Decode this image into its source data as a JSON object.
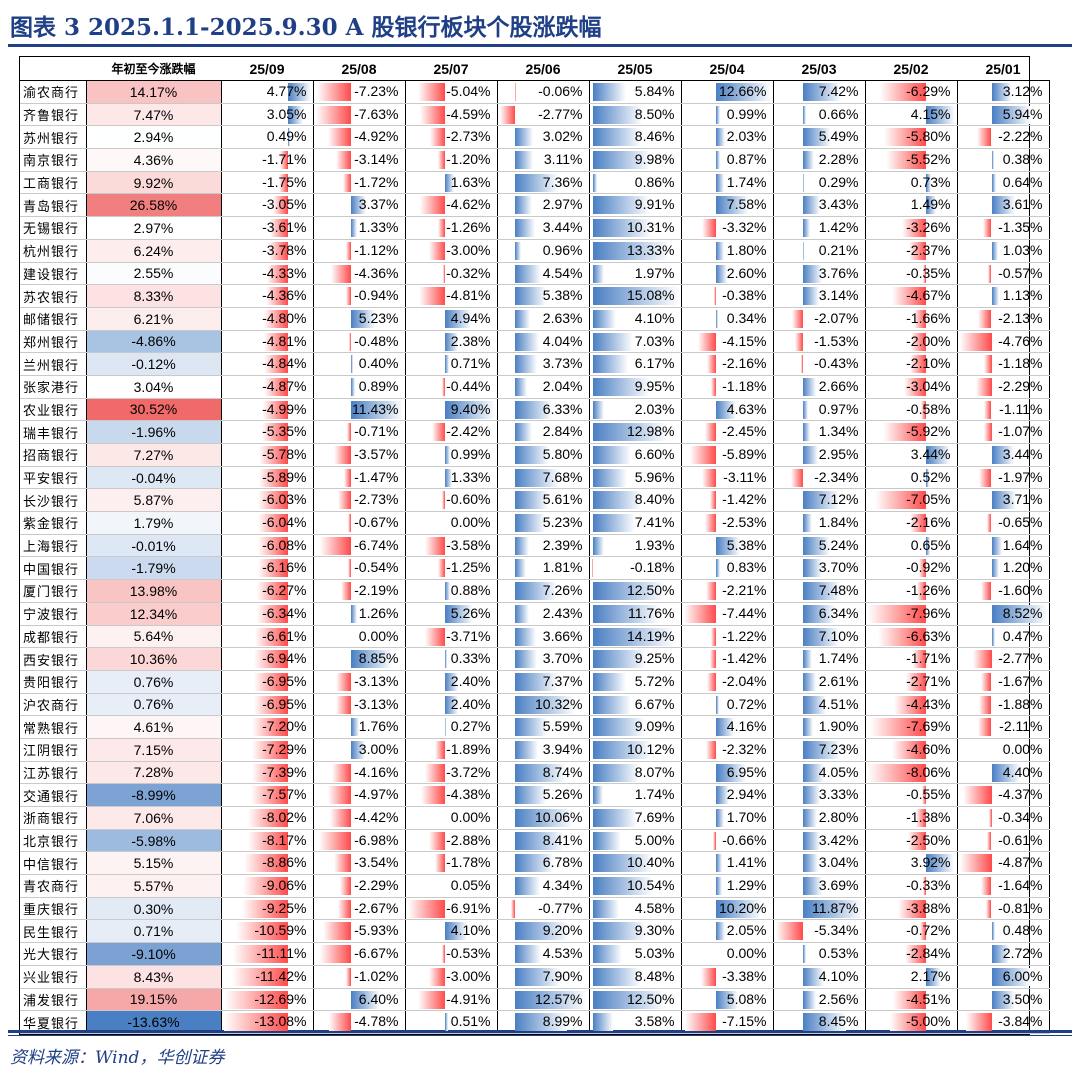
{
  "page": {
    "title": "图表 3   2025.1.1-2025.9.30   A 股银行板块个股涨跌幅",
    "source": "资料来源：Wind，华创证券"
  },
  "chart_data": {
    "type": "table",
    "columns": [
      "",
      "年初至今涨跌幅",
      "25/09",
      "25/08",
      "25/07",
      "25/06",
      "25/05",
      "25/04",
      "25/03",
      "25/02",
      "25/01"
    ],
    "rows": [
      {
        "name": "渝农商行",
        "ytd": "14.17%",
        "v": [
          "4.77%",
          "-7.23%",
          "-5.04%",
          "-0.06%",
          "5.84%",
          "12.66%",
          "7.42%",
          "-6.29%",
          "3.12%"
        ]
      },
      {
        "name": "齐鲁银行",
        "ytd": "7.47%",
        "v": [
          "3.05%",
          "-7.63%",
          "-4.59%",
          "-2.77%",
          "8.50%",
          "0.99%",
          "0.66%",
          "4.15%",
          "5.94%"
        ]
      },
      {
        "name": "苏州银行",
        "ytd": "2.94%",
        "v": [
          "0.49%",
          "-4.92%",
          "-2.73%",
          "3.02%",
          "8.46%",
          "2.03%",
          "5.49%",
          "-5.80%",
          "-2.22%"
        ]
      },
      {
        "name": "南京银行",
        "ytd": "4.36%",
        "v": [
          "-1.71%",
          "-3.14%",
          "-1.20%",
          "3.11%",
          "9.98%",
          "0.87%",
          "2.28%",
          "-5.52%",
          "0.38%"
        ]
      },
      {
        "name": "工商银行",
        "ytd": "9.92%",
        "v": [
          "-1.75%",
          "-1.72%",
          "1.63%",
          "7.36%",
          "0.86%",
          "1.74%",
          "0.29%",
          "0.73%",
          "0.64%"
        ]
      },
      {
        "name": "青岛银行",
        "ytd": "26.58%",
        "v": [
          "-3.05%",
          "3.37%",
          "-4.62%",
          "2.97%",
          "9.91%",
          "7.58%",
          "3.43%",
          "1.49%",
          "3.61%"
        ]
      },
      {
        "name": "无锡银行",
        "ytd": "2.97%",
        "v": [
          "-3.61%",
          "1.33%",
          "-1.26%",
          "3.44%",
          "10.31%",
          "-3.32%",
          "1.42%",
          "-3.26%",
          "-1.35%"
        ]
      },
      {
        "name": "杭州银行",
        "ytd": "6.24%",
        "v": [
          "-3.78%",
          "-1.12%",
          "-3.00%",
          "0.96%",
          "13.33%",
          "1.80%",
          "0.21%",
          "-2.37%",
          "1.03%"
        ]
      },
      {
        "name": "建设银行",
        "ytd": "2.55%",
        "v": [
          "-4.33%",
          "-4.36%",
          "-0.32%",
          "4.54%",
          "1.97%",
          "2.60%",
          "3.76%",
          "-0.35%",
          "-0.57%"
        ]
      },
      {
        "name": "苏农银行",
        "ytd": "8.33%",
        "v": [
          "-4.36%",
          "-0.94%",
          "-4.81%",
          "5.38%",
          "15.08%",
          "-0.38%",
          "3.14%",
          "-4.67%",
          "1.13%"
        ]
      },
      {
        "name": "邮储银行",
        "ytd": "6.21%",
        "v": [
          "-4.80%",
          "5.23%",
          "4.94%",
          "2.63%",
          "4.10%",
          "0.34%",
          "-2.07%",
          "-1.66%",
          "-2.13%"
        ]
      },
      {
        "name": "郑州银行",
        "ytd": "-4.86%",
        "v": [
          "-4.81%",
          "-0.48%",
          "2.38%",
          "4.04%",
          "7.03%",
          "-4.15%",
          "-1.53%",
          "-2.00%",
          "-4.76%"
        ]
      },
      {
        "name": "兰州银行",
        "ytd": "-0.12%",
        "v": [
          "-4.84%",
          "0.40%",
          "0.71%",
          "3.73%",
          "6.17%",
          "-2.16%",
          "-0.43%",
          "-2.10%",
          "-1.18%"
        ]
      },
      {
        "name": "张家港行",
        "ytd": "3.04%",
        "v": [
          "-4.87%",
          "0.89%",
          "-0.44%",
          "2.04%",
          "9.95%",
          "-1.18%",
          "2.66%",
          "-3.04%",
          "-2.29%"
        ]
      },
      {
        "name": "农业银行",
        "ytd": "30.52%",
        "v": [
          "-4.99%",
          "11.43%",
          "9.40%",
          "6.33%",
          "2.03%",
          "4.63%",
          "0.97%",
          "-0.58%",
          "-1.11%"
        ]
      },
      {
        "name": "瑞丰银行",
        "ytd": "-1.96%",
        "v": [
          "-5.35%",
          "-0.71%",
          "-2.42%",
          "2.84%",
          "12.98%",
          "-2.45%",
          "1.34%",
          "-5.92%",
          "-1.07%"
        ]
      },
      {
        "name": "招商银行",
        "ytd": "7.27%",
        "v": [
          "-5.78%",
          "-3.57%",
          "0.99%",
          "5.80%",
          "6.60%",
          "-5.89%",
          "2.95%",
          "3.44%",
          "3.44%"
        ]
      },
      {
        "name": "平安银行",
        "ytd": "-0.04%",
        "v": [
          "-5.89%",
          "-1.47%",
          "1.33%",
          "7.68%",
          "5.96%",
          "-3.11%",
          "-2.34%",
          "0.52%",
          "-1.97%"
        ]
      },
      {
        "name": "长沙银行",
        "ytd": "5.87%",
        "v": [
          "-6.03%",
          "-2.73%",
          "-0.60%",
          "5.61%",
          "8.40%",
          "-1.42%",
          "7.12%",
          "-7.05%",
          "3.71%"
        ]
      },
      {
        "name": "紫金银行",
        "ytd": "1.79%",
        "v": [
          "-6.04%",
          "-0.67%",
          "0.00%",
          "5.23%",
          "7.41%",
          "-2.53%",
          "1.84%",
          "-2.16%",
          "-0.65%"
        ]
      },
      {
        "name": "上海银行",
        "ytd": "-0.01%",
        "v": [
          "-6.08%",
          "-6.74%",
          "-3.58%",
          "2.39%",
          "1.93%",
          "5.38%",
          "5.24%",
          "0.65%",
          "1.64%"
        ]
      },
      {
        "name": "中国银行",
        "ytd": "-1.79%",
        "v": [
          "-6.16%",
          "-0.54%",
          "-1.25%",
          "1.81%",
          "-0.18%",
          "0.83%",
          "3.70%",
          "-0.92%",
          "1.20%"
        ]
      },
      {
        "name": "厦门银行",
        "ytd": "13.98%",
        "v": [
          "-6.27%",
          "-2.19%",
          "0.88%",
          "7.26%",
          "12.50%",
          "-2.21%",
          "7.48%",
          "-1.26%",
          "-1.60%"
        ]
      },
      {
        "name": "宁波银行",
        "ytd": "12.34%",
        "v": [
          "-6.34%",
          "1.26%",
          "5.26%",
          "2.43%",
          "11.76%",
          "-7.44%",
          "6.34%",
          "-7.96%",
          "8.52%"
        ]
      },
      {
        "name": "成都银行",
        "ytd": "5.64%",
        "v": [
          "-6.61%",
          "0.00%",
          "-3.71%",
          "3.66%",
          "14.19%",
          "-1.22%",
          "7.10%",
          "-6.63%",
          "0.47%"
        ]
      },
      {
        "name": "西安银行",
        "ytd": "10.36%",
        "v": [
          "-6.94%",
          "8.85%",
          "0.33%",
          "3.70%",
          "9.25%",
          "-1.42%",
          "1.74%",
          "-1.71%",
          "-2.77%"
        ]
      },
      {
        "name": "贵阳银行",
        "ytd": "0.76%",
        "v": [
          "-6.95%",
          "-3.13%",
          "2.40%",
          "7.37%",
          "5.72%",
          "-2.04%",
          "2.61%",
          "-2.71%",
          "-1.67%"
        ]
      },
      {
        "name": "沪农商行",
        "ytd": "0.76%",
        "v": [
          "-6.95%",
          "-3.13%",
          "2.40%",
          "10.32%",
          "6.67%",
          "0.72%",
          "4.51%",
          "-4.43%",
          "-1.88%"
        ]
      },
      {
        "name": "常熟银行",
        "ytd": "4.61%",
        "v": [
          "-7.20%",
          "1.76%",
          "0.27%",
          "5.59%",
          "9.09%",
          "4.16%",
          "1.90%",
          "-7.69%",
          "-2.11%"
        ]
      },
      {
        "name": "江阴银行",
        "ytd": "7.15%",
        "v": [
          "-7.29%",
          "3.00%",
          "-1.89%",
          "3.94%",
          "10.12%",
          "-2.32%",
          "7.23%",
          "-4.60%",
          "0.00%"
        ]
      },
      {
        "name": "江苏银行",
        "ytd": "7.28%",
        "v": [
          "-7.39%",
          "-4.16%",
          "-3.72%",
          "8.74%",
          "8.07%",
          "6.95%",
          "4.05%",
          "-8.06%",
          "4.40%"
        ]
      },
      {
        "name": "交通银行",
        "ytd": "-8.99%",
        "v": [
          "-7.57%",
          "-4.97%",
          "-4.38%",
          "5.26%",
          "1.74%",
          "2.94%",
          "3.33%",
          "-0.55%",
          "-4.37%"
        ]
      },
      {
        "name": "浙商银行",
        "ytd": "7.06%",
        "v": [
          "-8.02%",
          "-4.42%",
          "0.00%",
          "10.06%",
          "7.69%",
          "1.70%",
          "2.80%",
          "-1.38%",
          "-0.34%"
        ]
      },
      {
        "name": "北京银行",
        "ytd": "-5.98%",
        "v": [
          "-8.17%",
          "-6.98%",
          "-2.88%",
          "8.41%",
          "5.00%",
          "-0.66%",
          "3.42%",
          "-2.50%",
          "-0.61%"
        ]
      },
      {
        "name": "中信银行",
        "ytd": "5.15%",
        "v": [
          "-8.86%",
          "-3.54%",
          "-1.78%",
          "6.78%",
          "10.40%",
          "1.41%",
          "3.04%",
          "3.92%",
          "-4.87%"
        ]
      },
      {
        "name": "青农商行",
        "ytd": "5.57%",
        "v": [
          "-9.06%",
          "-2.29%",
          "0.05%",
          "4.34%",
          "10.54%",
          "1.29%",
          "3.69%",
          "-0.33%",
          "-1.64%"
        ]
      },
      {
        "name": "重庆银行",
        "ytd": "0.30%",
        "v": [
          "-9.25%",
          "-2.67%",
          "-6.91%",
          "-0.77%",
          "4.58%",
          "10.20%",
          "11.87%",
          "-3.88%",
          "-0.81%"
        ]
      },
      {
        "name": "民生银行",
        "ytd": "0.71%",
        "v": [
          "-10.59%",
          "-5.93%",
          "4.10%",
          "9.20%",
          "9.30%",
          "2.05%",
          "-5.34%",
          "-0.72%",
          "0.48%"
        ]
      },
      {
        "name": "光大银行",
        "ytd": "-9.10%",
        "v": [
          "-11.11%",
          "-6.67%",
          "-0.53%",
          "4.53%",
          "5.03%",
          "0.00%",
          "0.53%",
          "-2.84%",
          "2.72%"
        ]
      },
      {
        "name": "兴业银行",
        "ytd": "8.43%",
        "v": [
          "-11.42%",
          "-1.02%",
          "-3.00%",
          "7.90%",
          "8.48%",
          "-3.38%",
          "4.10%",
          "2.17%",
          "6.00%"
        ]
      },
      {
        "name": "浦发银行",
        "ytd": "19.15%",
        "v": [
          "-12.69%",
          "6.40%",
          "-4.91%",
          "12.57%",
          "12.50%",
          "5.08%",
          "2.56%",
          "-4.51%",
          "3.50%"
        ]
      },
      {
        "name": "华夏银行",
        "ytd": "-13.63%",
        "v": [
          "-13.08%",
          "-4.78%",
          "0.51%",
          "8.99%",
          "3.58%",
          "-7.15%",
          "8.45%",
          "-5.00%",
          "-3.84%"
        ]
      }
    ],
    "colors": {
      "positive_bar": "#4a7fc3",
      "negative_bar": "#ff4a4a",
      "ytd_pos_max": "#f06a6a",
      "ytd_neg_max": "#4a7fc3"
    }
  }
}
